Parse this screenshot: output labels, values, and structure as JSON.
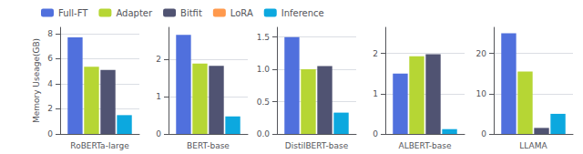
{
  "chart_data": [
    {
      "type": "bar",
      "ylabel": "Memory Useage(GB)",
      "categories": [
        "RoBERTa-large"
      ],
      "series": [
        {
          "name": "Full-FT",
          "values": [
            7.7
          ]
        },
        {
          "name": "Adapter",
          "values": [
            5.35
          ]
        },
        {
          "name": "Bitfit",
          "values": [
            5.1
          ]
        },
        {
          "name": "LoRA",
          "values": [
            null
          ]
        },
        {
          "name": "Inference",
          "values": [
            1.5
          ]
        }
      ],
      "ylim": [
        0,
        8.5
      ],
      "yticks": [
        0,
        2,
        4,
        6,
        8
      ],
      "grid": true,
      "legend": "upper left"
    },
    {
      "type": "bar",
      "categories": [
        "BERT-base"
      ],
      "series": [
        {
          "name": "Full-FT",
          "values": [
            2.65
          ]
        },
        {
          "name": "Adapter",
          "values": [
            1.88
          ]
        },
        {
          "name": "Bitfit",
          "values": [
            1.82
          ]
        },
        {
          "name": "LoRA",
          "values": [
            null
          ]
        },
        {
          "name": "Inference",
          "values": [
            0.47
          ]
        }
      ],
      "ylim": [
        0,
        2.85
      ],
      "yticks": [
        0,
        1,
        2
      ],
      "grid": true
    },
    {
      "type": "bar",
      "categories": [
        "DistilBERT-base"
      ],
      "series": [
        {
          "name": "Full-FT",
          "values": [
            1.5
          ]
        },
        {
          "name": "Adapter",
          "values": [
            1.0
          ]
        },
        {
          "name": "Bitfit",
          "values": [
            1.05
          ]
        },
        {
          "name": "LoRA",
          "values": [
            null
          ]
        },
        {
          "name": "Inference",
          "values": [
            0.33
          ]
        }
      ],
      "ylim": [
        0,
        1.65
      ],
      "yticks": [
        {
          "value": 0,
          "label": "0.0"
        },
        0.5,
        {
          "value": 1,
          "label": "1.0"
        },
        1.5
      ],
      "grid": true
    },
    {
      "type": "bar",
      "categories": [
        "ALBERT-base"
      ],
      "series": [
        {
          "name": "Full-FT",
          "values": [
            1.5
          ]
        },
        {
          "name": "Adapter",
          "values": [
            1.93
          ]
        },
        {
          "name": "Bitfit",
          "values": [
            1.98
          ]
        },
        {
          "name": "LoRA",
          "values": [
            null
          ]
        },
        {
          "name": "Inference",
          "values": [
            0.12
          ]
        }
      ],
      "ylim": [
        0,
        2.65
      ],
      "yticks": [
        0,
        1,
        2
      ],
      "grid": true
    },
    {
      "type": "bar",
      "categories": [
        "LLAMA"
      ],
      "series": [
        {
          "name": "Full-FT",
          "values": [
            25.0
          ]
        },
        {
          "name": "Adapter",
          "values": [
            15.5
          ]
        },
        {
          "name": "Bitfit",
          "values": [
            1.5
          ]
        },
        {
          "name": "LoRA",
          "values": [
            null
          ]
        },
        {
          "name": "Inference",
          "values": [
            5.0
          ]
        }
      ],
      "ylim": [
        0,
        26.5
      ],
      "yticks": [
        0,
        10,
        20
      ],
      "grid": true
    }
  ]
}
